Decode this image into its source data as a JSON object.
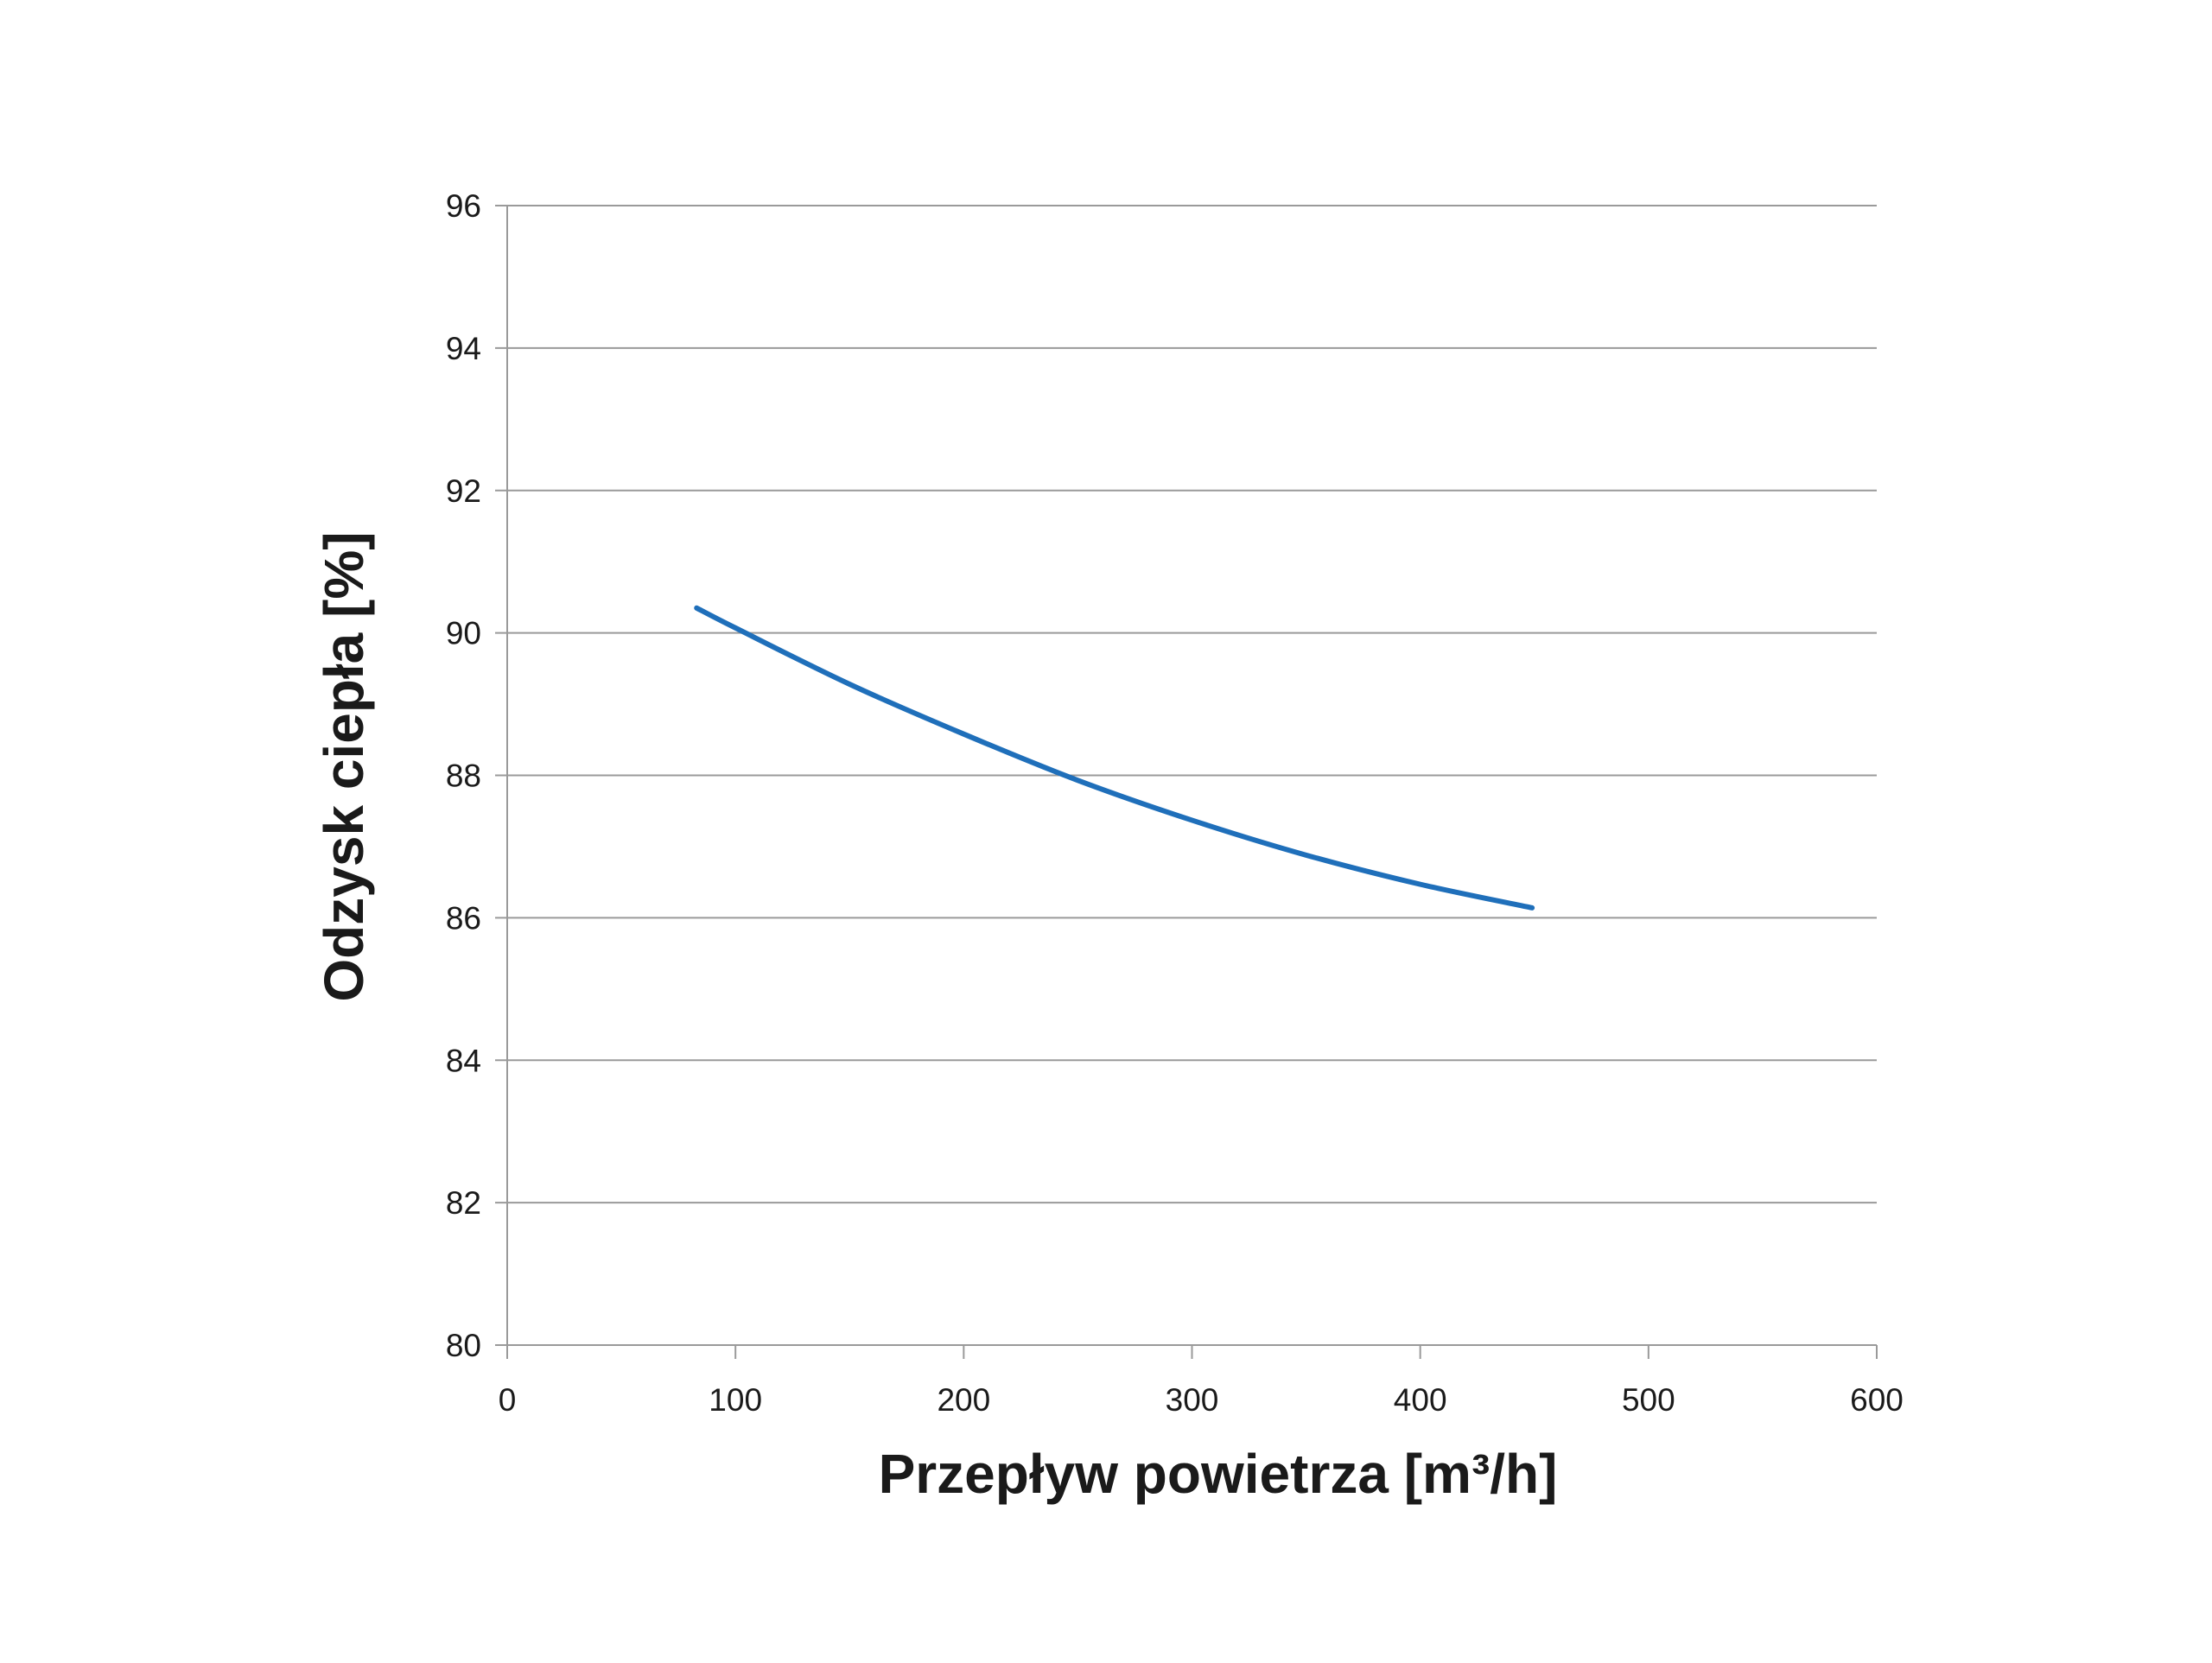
{
  "chart_data": {
    "type": "line",
    "title": "",
    "xlabel": "Przepływ powietrza [m³/h]",
    "ylabel": "Odzysk ciepła [%]",
    "xlim": [
      0,
      600
    ],
    "ylim": [
      80,
      96
    ],
    "x_ticks": [
      "0",
      "100",
      "200",
      "300",
      "400",
      "500",
      "600"
    ],
    "y_ticks": [
      "80",
      "82",
      "84",
      "86",
      "88",
      "90",
      "92",
      "94",
      "96"
    ],
    "grid": "horizontal",
    "legend": "none",
    "series": [
      {
        "color": "#1f6fba",
        "x": [
          83,
          100,
          150,
          200,
          250,
          300,
          350,
          400,
          449
        ],
        "y": [
          90.35,
          90.07,
          89.28,
          88.58,
          87.93,
          87.37,
          86.88,
          86.47,
          86.14
        ]
      }
    ]
  }
}
